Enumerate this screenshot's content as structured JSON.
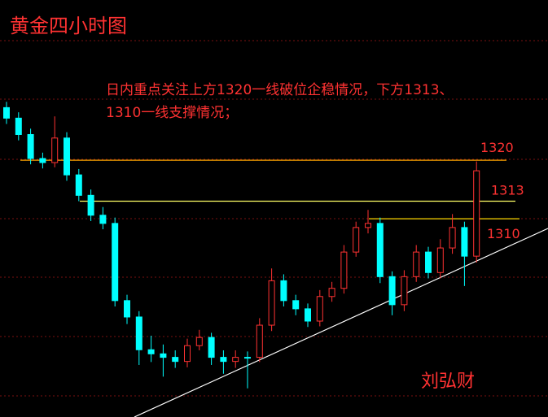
{
  "chart_data": {
    "type": "candlestick",
    "title": "黄金四小时图",
    "annotation": [
      "日内重点关注上方1320一线破位企稳情况，下方1313、",
      "1310一线支撑情况；"
    ],
    "author": "刘弘财",
    "open": [
      1329.0,
      1327.2,
      1324.4,
      1320.3,
      1319.6,
      1323.8,
      1317.5,
      1314.0,
      1310.6,
      1309.2,
      1296.0,
      1293.2,
      1287.6,
      1286.9,
      1286.3,
      1285.6,
      1288.3,
      1289.7,
      1286.3,
      1285.6,
      1286.3,
      1286.3,
      1291.8,
      1299.4,
      1296.0,
      1294.6,
      1292.5,
      1296.7,
      1298.1,
      1304.3,
      1308.5,
      1309.2,
      1300.1,
      1295.3,
      1300.1,
      1304.3,
      1300.8,
      1305.0,
      1308.5,
      1303.6
    ],
    "high": [
      1330.0,
      1328.2,
      1325.4,
      1321.3,
      1327.5,
      1324.8,
      1318.5,
      1315.0,
      1312.0,
      1310.2,
      1297.0,
      1294.2,
      1290.0,
      1288.5,
      1287.5,
      1289.5,
      1291.0,
      1290.5,
      1287.5,
      1287.5,
      1287.3,
      1293.0,
      1301.5,
      1300.5,
      1297.0,
      1295.5,
      1297.8,
      1299.2,
      1305.5,
      1309.5,
      1311.5,
      1310.2,
      1301.0,
      1301.2,
      1305.5,
      1305.2,
      1306.5,
      1310.8,
      1309.5,
      1319.8
    ],
    "low": [
      1326.2,
      1323.4,
      1319.3,
      1318.6,
      1318.8,
      1316.5,
      1313.0,
      1309.6,
      1308.2,
      1295.0,
      1292.0,
      1285.0,
      1285.5,
      1283.0,
      1284.5,
      1284.6,
      1287.5,
      1285.0,
      1283.5,
      1284.5,
      1281.0,
      1285.5,
      1290.8,
      1295.0,
      1293.5,
      1291.5,
      1291.6,
      1295.8,
      1297.2,
      1303.5,
      1307.5,
      1299.0,
      1293.5,
      1294.2,
      1299.2,
      1299.8,
      1299.8,
      1304.0,
      1298.5,
      1302.5
    ],
    "close": [
      1327.2,
      1324.4,
      1320.3,
      1319.6,
      1323.8,
      1317.5,
      1314.0,
      1310.6,
      1309.2,
      1296.0,
      1293.2,
      1287.6,
      1286.9,
      1286.3,
      1285.6,
      1288.3,
      1289.7,
      1286.3,
      1285.6,
      1286.3,
      1286.3,
      1291.8,
      1299.4,
      1296.0,
      1294.6,
      1292.5,
      1296.7,
      1298.1,
      1304.3,
      1308.5,
      1309.2,
      1300.1,
      1295.3,
      1300.1,
      1304.3,
      1300.8,
      1305.0,
      1308.5,
      1303.6,
      1318.2
    ],
    "levels": [
      1320,
      1313,
      1310
    ],
    "ylim": [
      1276.1,
      1347.4
    ],
    "up_color": "#ff3232",
    "down_color": "#00ffff",
    "level_colors": [
      "#ffa500",
      "#ffff66",
      "#ffd700"
    ]
  }
}
